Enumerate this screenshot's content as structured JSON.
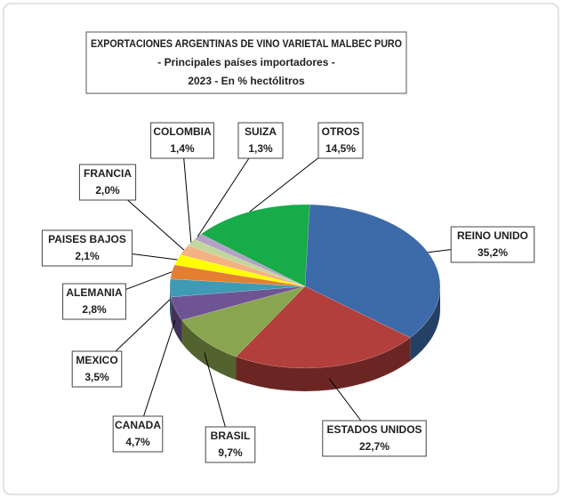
{
  "chart_data": {
    "type": "pie",
    "title_lines": [
      "EXPORTACIONES ARGENTINAS DE VINO VARIETAL MALBEC PURO",
      "- Principales países importadores -",
      "2023 - En % hectólitros"
    ],
    "categories": [
      "REINO UNIDO",
      "ESTADOS UNIDOS",
      "BRASIL",
      "CANADA",
      "MEXICO",
      "ALEMANIA",
      "PAISES BAJOS",
      "FRANCIA",
      "COLOMBIA",
      "SUIZA",
      "OTROS"
    ],
    "values": [
      35.2,
      22.7,
      9.7,
      4.7,
      3.5,
      2.8,
      2.1,
      2.0,
      1.4,
      1.3,
      14.5
    ],
    "value_labels": [
      "35,2%",
      "22,7%",
      "9,7%",
      "4,7%",
      "3,5%",
      "2,8%",
      "2,1%",
      "2,0%",
      "1,4%",
      "1,3%",
      "14,5%"
    ],
    "colors": [
      "#3d6aa8",
      "#b23f3c",
      "#8aa54f",
      "#6e5494",
      "#3f9ab3",
      "#e47f32",
      "#ffff00",
      "#f4b183",
      "#c3d69b",
      "#b3a2c7",
      "#17ab4a"
    ]
  }
}
